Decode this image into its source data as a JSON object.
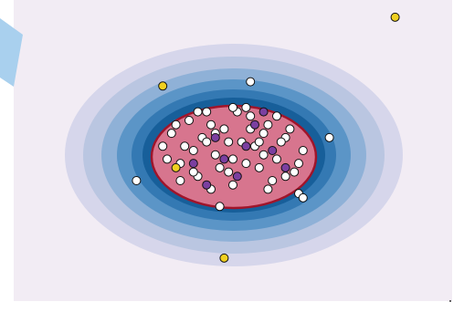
{
  "chart_data": {
    "type": "scatter",
    "xlim": [
      -5,
      5
    ],
    "ylim": [
      -3.5,
      3.5
    ],
    "series": [
      {
        "color": "#ffffff",
        "x": [
          -1.6,
          -1.4,
          -1.2,
          -1.0,
          -0.8,
          -0.6,
          -0.4,
          -0.2,
          0,
          0.2,
          0.4,
          0.6,
          0.8,
          1.0,
          1.2,
          1.4,
          1.6,
          -1.5,
          -1.1,
          -0.7,
          -0.3,
          0.1,
          0.5,
          0.9,
          1.3,
          -1.3,
          -0.9,
          -0.5,
          -0.1,
          0.3,
          0.7,
          1.1,
          1.5,
          -1.2,
          -0.8,
          -0.4,
          0,
          0.4,
          0.8,
          1.2,
          -0.9,
          -0.5,
          -0.1,
          0.3,
          0.7,
          1.0,
          -0.6,
          0,
          0.6
        ],
        "values": [
          0.1,
          0.4,
          -0.3,
          0.7,
          -0.6,
          0.9,
          -0.1,
          0.5,
          -0.8,
          0.2,
          0.8,
          -0.4,
          0.6,
          -0.2,
          0.3,
          -0.5,
          0.0,
          -0.2,
          0.1,
          0.3,
          -0.4,
          0.9,
          0.1,
          -0.7,
          0.5,
          0.6,
          -0.5,
          -0.9,
          0.2,
          -0.3,
          0.4,
          0.2,
          -0.3,
          -0.7,
          0.9,
          0.4,
          1.0,
          0.5,
          -0.9,
          -0.6,
          0.0,
          0.6,
          -0.5,
          1.0,
          -0.1,
          0.8,
          0.2,
          -0.2,
          0.2
        ]
      },
      {
        "color": "#7b3fa0",
        "x": [
          -0.9,
          -0.4,
          0.1,
          0.5,
          0.9,
          -0.2,
          0.3,
          1.2,
          -0.6,
          0.7
        ],
        "values": [
          -0.3,
          0.3,
          -0.6,
          0.6,
          0.0,
          -0.2,
          0.1,
          -0.4,
          -0.8,
          0.9
        ]
      },
      {
        "color": "#ffffff",
        "x": [
          0.4,
          2.2,
          -2.2,
          1.5,
          1.6,
          -0.3
        ],
        "values": [
          1.6,
          0.3,
          -0.7,
          -1.0,
          -1.1,
          -1.3
        ]
      },
      {
        "color": "#f0d020",
        "x": [
          3.7,
          -1.6,
          -0.2,
          -1.3
        ],
        "values": [
          3.1,
          1.5,
          -2.5,
          -0.4
        ]
      }
    ]
  }
}
